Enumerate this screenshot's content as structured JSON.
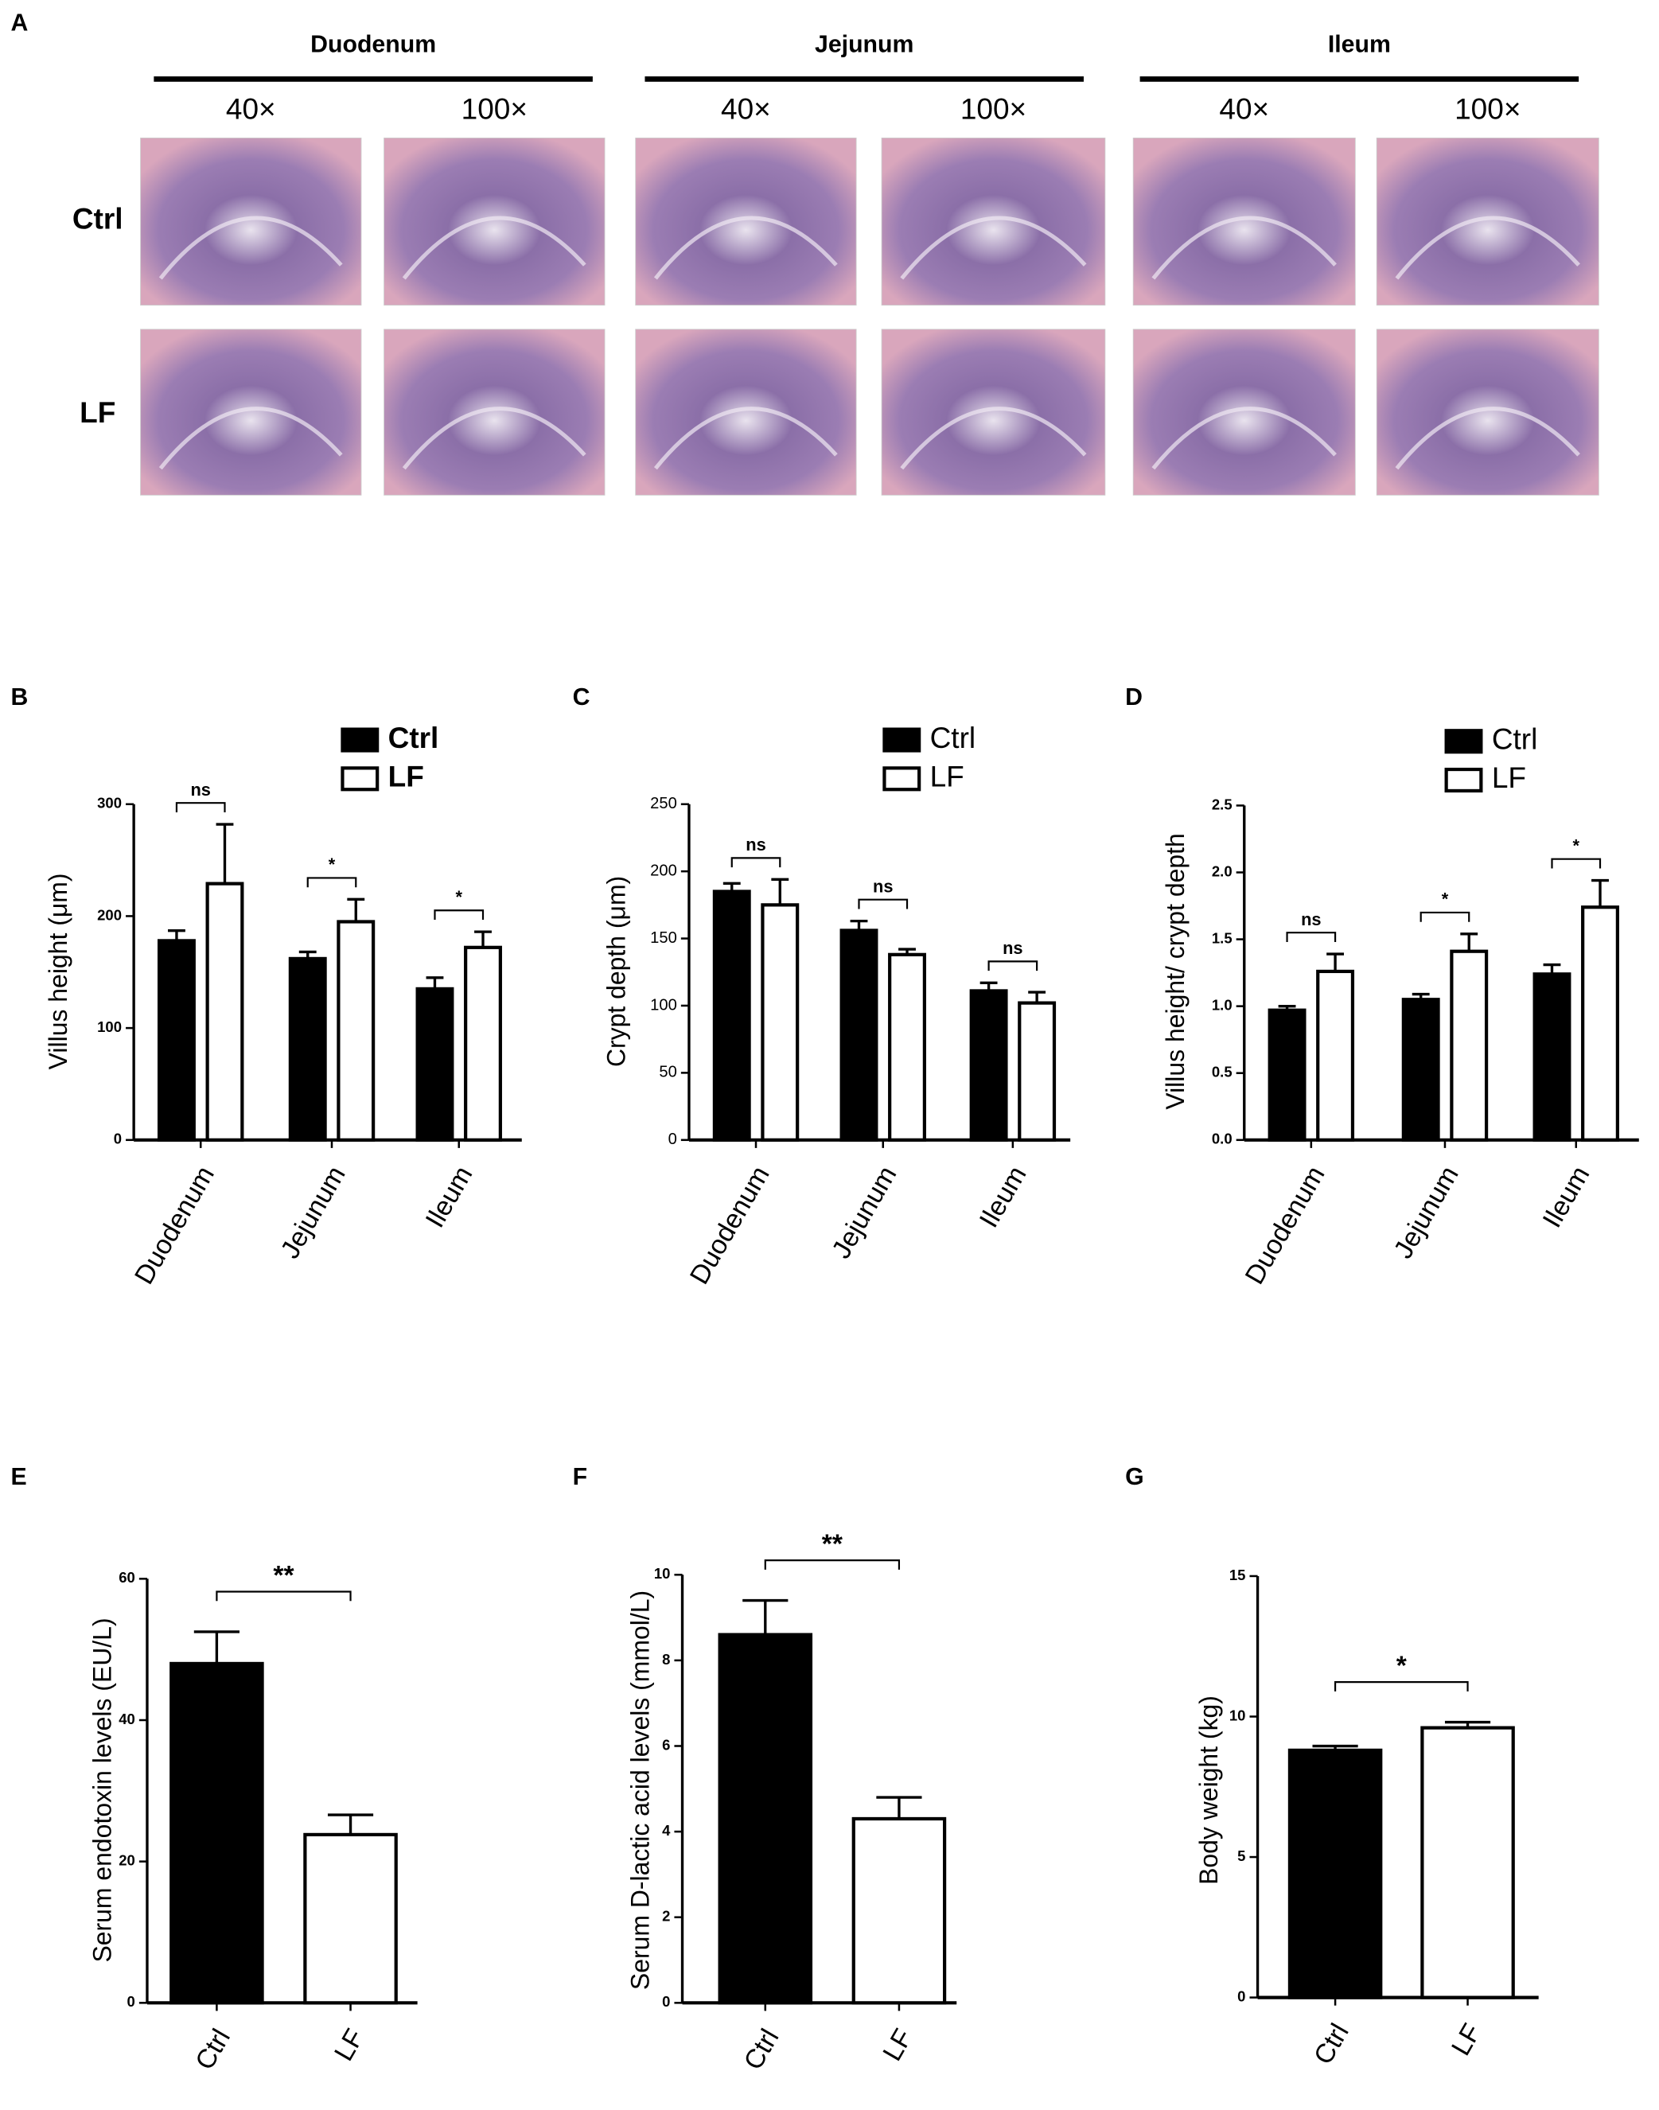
{
  "figure_a": {
    "panel": "A",
    "regions": [
      {
        "name": "Duodenum",
        "magnifications": [
          "40×",
          "100×"
        ]
      },
      {
        "name": "Jejunum",
        "magnifications": [
          "40×",
          "100×"
        ]
      },
      {
        "name": "Ileum",
        "magnifications": [
          "40×",
          "100×"
        ]
      }
    ],
    "rows": [
      "Ctrl",
      "LF"
    ]
  },
  "chart_data": [
    {
      "type": "bar",
      "panel": "B",
      "y_label": "Villus height (μm)",
      "categories": [
        "Duodenum",
        "Jejunum",
        "Ileum"
      ],
      "series": [
        {
          "name": "Ctrl",
          "color": "#000000",
          "values": [
            178,
            162,
            135
          ],
          "errors": [
            9,
            6,
            10
          ]
        },
        {
          "name": "LF",
          "color": "#ffffff",
          "values": [
            229,
            195,
            172
          ],
          "errors": [
            53,
            20,
            14
          ]
        }
      ],
      "significance": [
        "ns",
        "*",
        "*"
      ],
      "ylim": [
        0,
        300
      ],
      "yticks": [
        0,
        100,
        200,
        300
      ]
    },
    {
      "type": "bar",
      "panel": "C",
      "y_label": "Crypt depth (μm)",
      "categories": [
        "Duodenum",
        "Jejunum",
        "Ileum"
      ],
      "series": [
        {
          "name": "Ctrl",
          "color": "#000000",
          "values": [
            185,
            156,
            111
          ],
          "errors": [
            6,
            7,
            6
          ]
        },
        {
          "name": "LF",
          "color": "#ffffff",
          "values": [
            175,
            138,
            102
          ],
          "errors": [
            19,
            4,
            8
          ]
        }
      ],
      "significance": [
        "ns",
        "ns",
        "ns"
      ],
      "ylim": [
        0,
        250
      ],
      "yticks": [
        0,
        50,
        100,
        150,
        200,
        250
      ]
    },
    {
      "type": "bar",
      "panel": "D",
      "y_label": "Villus height/ crypt depth",
      "categories": [
        "Duodenum",
        "Jejunum",
        "Ileum"
      ],
      "series": [
        {
          "name": "Ctrl",
          "color": "#000000",
          "values": [
            0.97,
            1.05,
            1.24
          ],
          "errors": [
            0.03,
            0.04,
            0.07
          ]
        },
        {
          "name": "LF",
          "color": "#ffffff",
          "values": [
            1.26,
            1.41,
            1.74
          ],
          "errors": [
            0.13,
            0.13,
            0.2
          ]
        }
      ],
      "significance": [
        "ns",
        "*",
        "*"
      ],
      "ylim": [
        0,
        2.5
      ],
      "yticks": [
        {
          "value": 0,
          "label": "0.0"
        },
        0.5,
        {
          "value": 1,
          "label": "1.0"
        },
        1.5,
        {
          "value": 2,
          "label": "2.0"
        },
        2.5
      ]
    },
    {
      "type": "bar",
      "panel": "E",
      "y_label": "Serum endotoxin levels (EU/L)",
      "categories": [
        "Ctrl",
        "LF"
      ],
      "values": [
        48,
        23.8
      ],
      "errors": [
        4.5,
        2.8
      ],
      "colors": [
        "#000000",
        "#ffffff"
      ],
      "significance": "**",
      "ylim": [
        0,
        60
      ],
      "yticks": [
        0,
        20,
        40,
        60
      ]
    },
    {
      "type": "bar",
      "panel": "F",
      "y_label": "Serum D-lactic acid levels (mmol/L)",
      "categories": [
        "Ctrl",
        "LF"
      ],
      "values": [
        8.6,
        4.3
      ],
      "errors": [
        0.8,
        0.5
      ],
      "colors": [
        "#000000",
        "#ffffff"
      ],
      "significance": "**",
      "ylim": [
        0,
        10
      ],
      "yticks": [
        0,
        2,
        4,
        6,
        8,
        10
      ]
    },
    {
      "type": "bar",
      "panel": "G",
      "y_label": "Body weight (kg)",
      "categories": [
        "Ctrl",
        "LF"
      ],
      "values": [
        8.8,
        9.6
      ],
      "errors": [
        0.15,
        0.2
      ],
      "colors": [
        "#000000",
        "#ffffff"
      ],
      "significance": "*",
      "ylim": [
        0,
        15
      ],
      "yticks": [
        0,
        5,
        10,
        15
      ]
    }
  ]
}
